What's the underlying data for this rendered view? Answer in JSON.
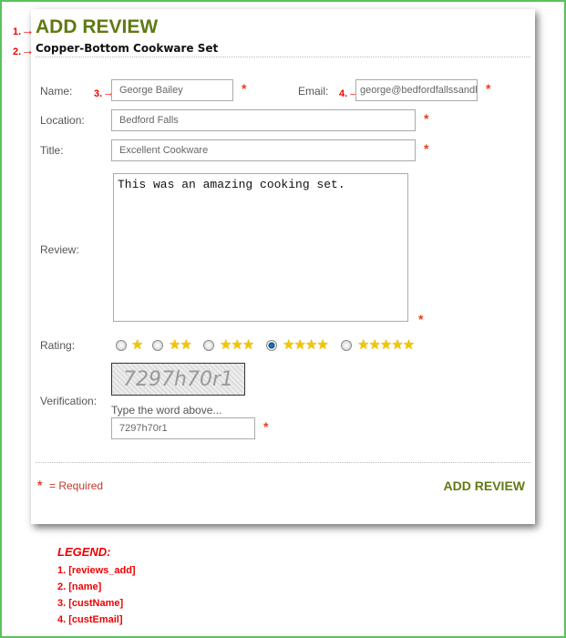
{
  "form": {
    "title": "ADD REVIEW",
    "product_name": "Copper-Bottom Cookware Set",
    "name_label": "Name:",
    "name_value": "George Bailey",
    "email_label": "Email:",
    "email_value": "george@bedfordfallssandl",
    "location_label": "Location:",
    "location_value": "Bedford Falls",
    "title_label": "Title:",
    "title_value": "Excellent Cookware",
    "review_label": "Review:",
    "review_value": "This was an amazing cooking set.",
    "rating_label": "Rating:",
    "rating_options": [
      "★",
      "★★",
      "★★★",
      "★★★★",
      "★★★★★"
    ],
    "rating_selected": 4,
    "verification_label": "Verification:",
    "captcha_text": "7297h70r1",
    "captcha_hint": "Type the word above...",
    "verification_value": "7297h70r1",
    "required_asterisk": "*",
    "required_note": "= Required",
    "submit_label": "ADD REVIEW"
  },
  "annotations": {
    "m1": "1.",
    "m2": "2.",
    "m3": "3.",
    "m4": "4.",
    "arrow": "→"
  },
  "legend": {
    "title": "LEGEND:",
    "items": [
      "1. [reviews_add]",
      "2. [name]",
      "3. [custName]",
      "4. [custEmail]"
    ]
  },
  "colors": {
    "accent": "#5f7a12",
    "required": "#e8401a",
    "annotation": "#ee0000",
    "frame": "#5cc15c"
  }
}
